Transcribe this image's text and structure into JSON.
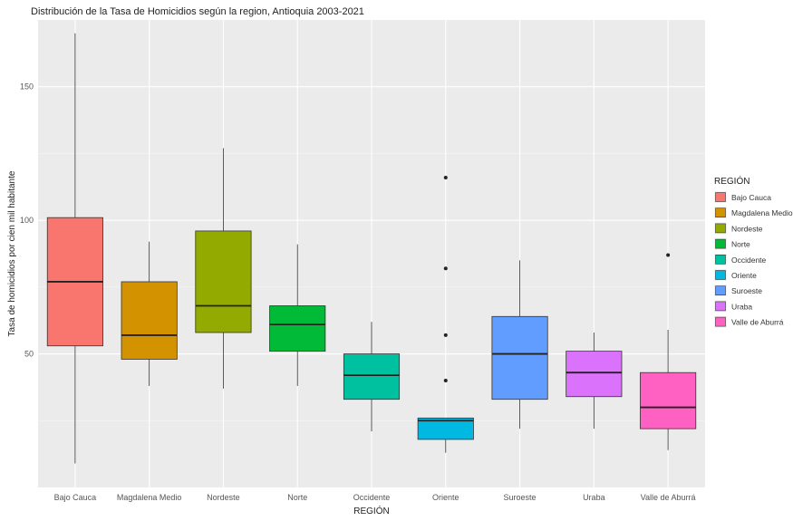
{
  "chart_data": {
    "type": "boxplot",
    "title": "Distribución de la Tasa de Homicidios según la region, Antioquia 2003-2021",
    "xlabel": "REGIÓN",
    "ylabel": "Tasa de homicidios por cien mil habitante",
    "ylim": [
      0,
      175
    ],
    "yticks": [
      50,
      100,
      150
    ],
    "grid": true,
    "legend_title": "REGIÓN",
    "legend_position": "right",
    "categories": [
      "Bajo Cauca",
      "Magdalena Medio",
      "Nordeste",
      "Norte",
      "Occidente",
      "Oriente",
      "Suroeste",
      "Uraba",
      "Valle de Aburrá"
    ],
    "boxes": [
      {
        "name": "Bajo Cauca",
        "color": "#F8766D",
        "min": 9,
        "q1": 53,
        "median": 77,
        "q3": 101,
        "max": 170,
        "outliers": []
      },
      {
        "name": "Magdalena Medio",
        "color": "#D39200",
        "min": 38,
        "q1": 48,
        "median": 57,
        "q3": 77,
        "max": 92,
        "outliers": []
      },
      {
        "name": "Nordeste",
        "color": "#93AA00",
        "min": 37,
        "q1": 58,
        "median": 68,
        "q3": 96,
        "max": 127,
        "outliers": []
      },
      {
        "name": "Norte",
        "color": "#00BA38",
        "min": 38,
        "q1": 51,
        "median": 61,
        "q3": 68,
        "max": 91,
        "outliers": []
      },
      {
        "name": "Occidente",
        "color": "#00C19F",
        "min": 21,
        "q1": 33,
        "median": 42,
        "q3": 50,
        "max": 62,
        "outliers": []
      },
      {
        "name": "Oriente",
        "color": "#00B9E3",
        "min": 13,
        "q1": 18,
        "median": 25,
        "q3": 26,
        "max": 26,
        "outliers": [
          40,
          57,
          82,
          116
        ]
      },
      {
        "name": "Suroeste",
        "color": "#619CFF",
        "min": 22,
        "q1": 33,
        "median": 50,
        "q3": 64,
        "max": 85,
        "outliers": []
      },
      {
        "name": "Uraba",
        "color": "#DB72FB",
        "min": 22,
        "q1": 34,
        "median": 43,
        "q3": 51,
        "max": 58,
        "outliers": []
      },
      {
        "name": "Valle de Aburrá",
        "color": "#FF61C3",
        "min": 14,
        "q1": 22,
        "median": 30,
        "q3": 43,
        "max": 59,
        "outliers": [
          87
        ]
      }
    ]
  }
}
